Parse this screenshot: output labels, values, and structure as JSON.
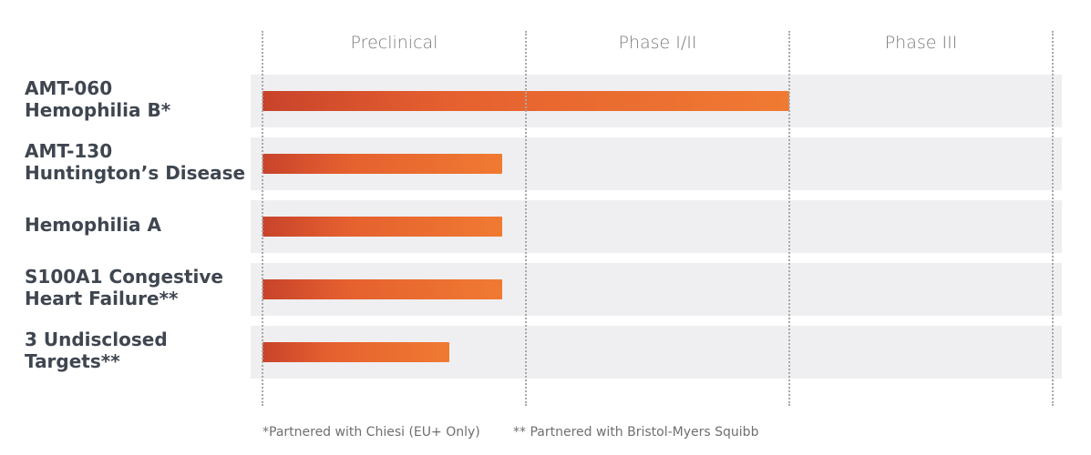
{
  "chart_data": {
    "type": "bar",
    "orientation": "horizontal",
    "x_axis_categories": [
      "Preclinical",
      "Phase I/II",
      "Phase III"
    ],
    "categories": [
      [
        "AMT-060",
        "Hemophilia  B*"
      ],
      [
        "AMT-130",
        "Huntington’s Disease"
      ],
      [
        "Hemophilia  A"
      ],
      [
        "S100A1 Congestive",
        "Heart Failure**"
      ],
      [
        "3 Undisclosed",
        "Targets**"
      ]
    ],
    "values": [
      2.0,
      0.91,
      0.91,
      0.91,
      0.71
    ],
    "xlim": [
      0,
      3
    ],
    "grid": "dotted vertical",
    "bar_color_start": "#c8432b",
    "bar_color_end": "#f07a32",
    "band_color": "#efeff1"
  },
  "footnotes": [
    "*Partnered with Chiesi (EU+ Only)",
    "** Partnered with Bristol-Myers Squibb"
  ]
}
